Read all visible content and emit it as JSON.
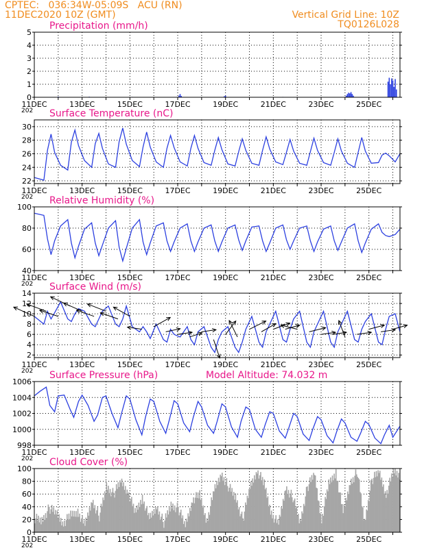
{
  "header": {
    "line1": "CPTEC:   036:34W-05:09S   ACU (RN)",
    "line2": "11DEC2020 10Z (GMT)",
    "right1": "Vertical Grid Line: 10Z",
    "right2": "TQ0126L028"
  },
  "colors": {
    "header": "#f08c1e",
    "title": "#e8178a",
    "line": "#2b3fe0",
    "cloud": "#a6a6a6",
    "arrow": "#000000"
  },
  "x_ticks": [
    "11DEC",
    "13DEC",
    "15DEC",
    "17DEC",
    "19DEC",
    "21DEC",
    "23DEC",
    "25DEC"
  ],
  "year_fragment": "202",
  "chart_data": [
    {
      "id": "precip",
      "type": "bar",
      "title": "Precipitation (mm/h)",
      "ylim": [
        0,
        5
      ],
      "yticks": [
        0,
        1,
        2,
        3,
        4,
        5
      ],
      "x_range_days": [
        11,
        26.3
      ],
      "bars": [
        {
          "x": 12.0,
          "y": 0.05
        },
        {
          "x": 13.3,
          "y": 0.04
        },
        {
          "x": 15.1,
          "y": 0.03
        },
        {
          "x": 17.05,
          "y": 0.12
        },
        {
          "x": 17.1,
          "y": 0.25
        },
        {
          "x": 17.15,
          "y": 0.1
        },
        {
          "x": 18.95,
          "y": 0.08
        },
        {
          "x": 19.0,
          "y": 0.12
        },
        {
          "x": 21.4,
          "y": 0.03
        },
        {
          "x": 24.05,
          "y": 0.12
        },
        {
          "x": 24.1,
          "y": 0.25
        },
        {
          "x": 24.15,
          "y": 0.35
        },
        {
          "x": 24.2,
          "y": 0.3
        },
        {
          "x": 24.25,
          "y": 0.4
        },
        {
          "x": 24.3,
          "y": 0.25
        },
        {
          "x": 24.35,
          "y": 0.12
        },
        {
          "x": 25.8,
          "y": 1.2
        },
        {
          "x": 25.85,
          "y": 1.5
        },
        {
          "x": 25.9,
          "y": 1.0
        },
        {
          "x": 25.95,
          "y": 1.45
        },
        {
          "x": 26.0,
          "y": 1.3
        },
        {
          "x": 26.05,
          "y": 0.8
        },
        {
          "x": 26.1,
          "y": 1.4
        },
        {
          "x": 26.15,
          "y": 0.6
        }
      ]
    },
    {
      "id": "temp",
      "type": "line",
      "title": "Surface Temperature (nC)",
      "ylim": [
        21.6,
        31
      ],
      "yticks": [
        22,
        24,
        26,
        28,
        30
      ],
      "x_range_days": [
        11,
        26.3
      ],
      "x": [
        11.0,
        11.4,
        11.55,
        11.7,
        11.85,
        12.1,
        12.4,
        12.55,
        12.7,
        12.85,
        13.1,
        13.4,
        13.55,
        13.7,
        13.85,
        14.1,
        14.4,
        14.55,
        14.7,
        14.85,
        15.1,
        15.4,
        15.55,
        15.7,
        15.85,
        16.1,
        16.4,
        16.55,
        16.7,
        16.85,
        17.1,
        17.4,
        17.55,
        17.7,
        17.85,
        18.1,
        18.4,
        18.55,
        18.7,
        18.85,
        19.1,
        19.4,
        19.55,
        19.7,
        19.85,
        20.1,
        20.4,
        20.55,
        20.7,
        20.85,
        21.1,
        21.4,
        21.55,
        21.7,
        21.85,
        22.1,
        22.4,
        22.55,
        22.7,
        22.85,
        23.1,
        23.4,
        23.55,
        23.7,
        23.85,
        24.1,
        24.4,
        24.55,
        24.7,
        24.85,
        25.1,
        25.4,
        25.55,
        25.7,
        25.85,
        26.1,
        26.3
      ],
      "values": [
        22.5,
        22.1,
        26.5,
        28.9,
        26.2,
        24.3,
        23.6,
        27.7,
        29.5,
        27.2,
        25.0,
        24.0,
        27.5,
        29.0,
        26.8,
        24.5,
        24.0,
        27.8,
        29.8,
        27.4,
        25.0,
        24.1,
        27.0,
        29.2,
        27.0,
        24.8,
        24.0,
        26.8,
        28.7,
        26.9,
        24.8,
        24.2,
        26.8,
        28.7,
        26.8,
        24.7,
        24.3,
        26.5,
        28.4,
        26.6,
        24.5,
        24.2,
        26.3,
        28.2,
        26.5,
        24.6,
        24.3,
        26.5,
        28.5,
        26.7,
        24.8,
        24.4,
        26.2,
        28.1,
        26.4,
        24.6,
        24.3,
        26.3,
        28.3,
        26.5,
        24.7,
        24.3,
        26.2,
        28.2,
        26.4,
        24.6,
        24.0,
        26.2,
        28.4,
        26.4,
        24.6,
        24.7,
        25.8,
        26.1,
        25.7,
        24.8,
        26.0
      ]
    },
    {
      "id": "rh",
      "type": "line",
      "title": "Relative Humidity (%)",
      "ylim": [
        40,
        100
      ],
      "yticks": [
        40,
        60,
        80,
        100
      ],
      "x_range_days": [
        11,
        26.3
      ],
      "x": [
        11.0,
        11.4,
        11.55,
        11.7,
        11.85,
        12.1,
        12.4,
        12.55,
        12.7,
        12.85,
        13.1,
        13.4,
        13.55,
        13.7,
        13.85,
        14.1,
        14.4,
        14.55,
        14.7,
        14.85,
        15.1,
        15.4,
        15.55,
        15.7,
        15.85,
        16.1,
        16.4,
        16.55,
        16.7,
        16.85,
        17.1,
        17.4,
        17.55,
        17.7,
        17.85,
        18.1,
        18.4,
        18.55,
        18.7,
        18.85,
        19.1,
        19.4,
        19.55,
        19.7,
        19.85,
        20.1,
        20.4,
        20.55,
        20.7,
        20.85,
        21.1,
        21.4,
        21.55,
        21.7,
        21.85,
        22.1,
        22.4,
        22.55,
        22.7,
        22.85,
        23.1,
        23.4,
        23.55,
        23.7,
        23.85,
        24.1,
        24.4,
        24.55,
        24.7,
        24.85,
        25.1,
        25.4,
        25.55,
        25.7,
        25.85,
        26.1,
        26.3
      ],
      "values": [
        94,
        92,
        70,
        55,
        68,
        82,
        88,
        66,
        52,
        63,
        79,
        85,
        66,
        54,
        64,
        80,
        87,
        62,
        49,
        61,
        80,
        88,
        67,
        55,
        66,
        82,
        85,
        68,
        58,
        67,
        80,
        84,
        68,
        58,
        67,
        80,
        83,
        68,
        58,
        67,
        80,
        83,
        69,
        59,
        68,
        81,
        82,
        68,
        58,
        66,
        80,
        83,
        69,
        60,
        68,
        80,
        82,
        68,
        58,
        67,
        79,
        82,
        68,
        59,
        67,
        80,
        84,
        68,
        57,
        66,
        79,
        84,
        76,
        73,
        72,
        74,
        79
      ]
    },
    {
      "id": "wind",
      "type": "line",
      "title": "Surface Wind (m/s)",
      "ylim": [
        1.5,
        14
      ],
      "yticks": [
        2,
        4,
        6,
        8,
        10,
        12,
        14
      ],
      "x_range_days": [
        11,
        26.3
      ],
      "x": [
        11.0,
        11.4,
        11.55,
        11.7,
        11.85,
        12.1,
        12.4,
        12.55,
        12.7,
        12.85,
        13.1,
        13.4,
        13.55,
        13.7,
        13.85,
        14.1,
        14.4,
        14.55,
        14.7,
        14.85,
        15.1,
        15.4,
        15.55,
        15.7,
        15.85,
        16.1,
        16.4,
        16.55,
        16.7,
        16.85,
        17.1,
        17.4,
        17.55,
        17.7,
        17.85,
        18.1,
        18.4,
        18.55,
        18.7,
        18.85,
        19.1,
        19.4,
        19.55,
        19.7,
        19.85,
        20.1,
        20.4,
        20.55,
        20.7,
        20.85,
        21.1,
        21.4,
        21.55,
        21.7,
        21.85,
        22.1,
        22.4,
        22.55,
        22.7,
        22.85,
        23.1,
        23.4,
        23.55,
        23.7,
        23.85,
        24.1,
        24.4,
        24.55,
        24.7,
        24.85,
        25.1,
        25.4,
        25.55,
        25.7,
        25.85,
        26.1,
        26.3
      ],
      "values": [
        9.5,
        8.0,
        10.5,
        9.0,
        10.2,
        12.3,
        9.0,
        8.5,
        10.0,
        11.0,
        10.5,
        8.0,
        7.5,
        9.0,
        10.5,
        11.5,
        8.0,
        7.5,
        9.0,
        11.5,
        7.5,
        6.5,
        7.5,
        6.5,
        5.2,
        8.0,
        5.0,
        4.5,
        7.0,
        6.0,
        5.5,
        7.5,
        5.0,
        4.0,
        6.5,
        7.5,
        3.5,
        2.5,
        5.0,
        6.5,
        7.5,
        3.5,
        2.5,
        4.5,
        7.0,
        9.5,
        4.5,
        3.5,
        6.5,
        8.0,
        10.5,
        5.0,
        4.5,
        7.0,
        9.0,
        10.5,
        4.5,
        3.5,
        6.5,
        8.0,
        10.5,
        4.5,
        3.5,
        6.5,
        8.0,
        10.5,
        5.0,
        4.5,
        7.0,
        8.5,
        10.0,
        4.5,
        4.0,
        7.0,
        9.5,
        10.0,
        6.5
      ],
      "vectors": [
        {
          "x": 11.0,
          "u": -1.0,
          "v": 0.45,
          "speed": 9.5
        },
        {
          "x": 11.5,
          "u": -0.95,
          "v": 0.35,
          "speed": 10.5
        },
        {
          "x": 12.0,
          "u": -0.9,
          "v": 0.3,
          "speed": 9.5
        },
        {
          "x": 12.5,
          "u": -0.95,
          "v": 0.45,
          "speed": 11.5
        },
        {
          "x": 13.0,
          "u": -0.9,
          "v": 0.4,
          "speed": 10.5
        },
        {
          "x": 13.5,
          "u": -0.85,
          "v": 0.3,
          "speed": 9.5
        },
        {
          "x": 14.0,
          "u": -0.9,
          "v": 0.35,
          "speed": 10.5
        },
        {
          "x": 14.5,
          "u": -0.85,
          "v": 0.3,
          "speed": 9.0
        },
        {
          "x": 15.0,
          "u": -0.8,
          "v": 0.45,
          "speed": 9.5
        },
        {
          "x": 15.5,
          "u": -0.7,
          "v": 0.1,
          "speed": 7.0
        },
        {
          "x": 16.0,
          "u": 0.8,
          "v": 0.45,
          "speed": 7.5
        },
        {
          "x": 16.5,
          "u": 0.7,
          "v": 0.15,
          "speed": 6.5
        },
        {
          "x": 17.0,
          "u": 0.7,
          "v": 0.1,
          "speed": 6.0
        },
        {
          "x": 17.5,
          "u": 0.6,
          "v": 0.2,
          "speed": 5.5
        },
        {
          "x": 18.0,
          "u": 0.7,
          "v": 0.1,
          "speed": 6.5
        },
        {
          "x": 18.5,
          "u": 0.3,
          "v": -0.9,
          "speed": 5.0
        },
        {
          "x": 19.0,
          "u": 0.5,
          "v": 0.65,
          "speed": 6.0
        },
        {
          "x": 19.5,
          "u": -0.4,
          "v": 0.8,
          "speed": 5.5
        },
        {
          "x": 20.0,
          "u": 0.8,
          "v": 0.4,
          "speed": 7.0
        },
        {
          "x": 20.5,
          "u": 0.7,
          "v": 0.4,
          "speed": 6.5
        },
        {
          "x": 21.0,
          "u": 0.8,
          "v": 0.3,
          "speed": 7.0
        },
        {
          "x": 21.5,
          "u": 0.7,
          "v": 0.2,
          "speed": 7.0
        },
        {
          "x": 22.0,
          "u": -0.8,
          "v": 0.2,
          "speed": 7.0
        },
        {
          "x": 22.5,
          "u": 0.8,
          "v": 0.2,
          "speed": 6.5
        },
        {
          "x": 23.0,
          "u": 0.7,
          "v": 0.1,
          "speed": 6.0
        },
        {
          "x": 23.5,
          "u": 0.65,
          "v": 0.1,
          "speed": 6.0
        },
        {
          "x": 24.0,
          "u": -0.3,
          "v": 0.8,
          "speed": 5.5
        },
        {
          "x": 24.5,
          "u": 0.7,
          "v": 0.1,
          "speed": 6.0
        },
        {
          "x": 25.0,
          "u": 0.75,
          "v": 0.2,
          "speed": 7.0
        },
        {
          "x": 25.5,
          "u": 0.7,
          "v": 0.1,
          "speed": 6.5
        },
        {
          "x": 26.0,
          "u": 0.7,
          "v": 0.2,
          "speed": 7.0
        }
      ]
    },
    {
      "id": "pres",
      "type": "line",
      "title": "Surface Pressure (hPa)",
      "annotation": "Model Altitude: 74.032 m",
      "ylim": [
        998,
        1006
      ],
      "yticks": [
        998,
        1000,
        1002,
        1004,
        1006
      ],
      "x_range_days": [
        11,
        26.3
      ],
      "x": [
        11.0,
        11.25,
        11.5,
        11.65,
        11.85,
        12.0,
        12.25,
        12.5,
        12.65,
        12.85,
        13.0,
        13.25,
        13.5,
        13.65,
        13.85,
        14.0,
        14.25,
        14.5,
        14.65,
        14.85,
        15.0,
        15.25,
        15.5,
        15.65,
        15.85,
        16.0,
        16.25,
        16.5,
        16.65,
        16.85,
        17.0,
        17.25,
        17.5,
        17.65,
        17.85,
        18.0,
        18.25,
        18.5,
        18.65,
        18.85,
        19.0,
        19.25,
        19.5,
        19.65,
        19.85,
        20.0,
        20.25,
        20.5,
        20.65,
        20.85,
        21.0,
        21.25,
        21.5,
        21.65,
        21.85,
        22.0,
        22.25,
        22.5,
        22.65,
        22.85,
        23.0,
        23.25,
        23.5,
        23.65,
        23.85,
        24.0,
        24.25,
        24.5,
        24.65,
        24.85,
        25.0,
        25.25,
        25.5,
        25.65,
        25.85,
        26.0,
        26.3
      ],
      "values": [
        1004.2,
        1004.8,
        1005.3,
        1003.0,
        1002.2,
        1004.2,
        1004.3,
        1002.5,
        1001.5,
        1003.5,
        1004.3,
        1003.0,
        1001.0,
        1001.8,
        1004.0,
        1004.2,
        1002.0,
        1000.2,
        1002.0,
        1004.2,
        1003.8,
        1001.2,
        999.3,
        1001.5,
        1003.8,
        1003.5,
        1001.0,
        999.5,
        1001.2,
        1003.6,
        1003.2,
        1000.8,
        999.7,
        1001.5,
        1003.5,
        1002.8,
        1000.5,
        999.5,
        1001.0,
        1003.2,
        1002.8,
        1000.3,
        999.0,
        1001.0,
        1002.8,
        1002.5,
        1000.0,
        999.0,
        1000.5,
        1002.2,
        1002.0,
        999.8,
        998.9,
        1000.2,
        1002.0,
        1001.6,
        999.4,
        998.6,
        1000.0,
        1001.6,
        1001.2,
        999.2,
        998.3,
        999.7,
        1001.3,
        1000.8,
        999.0,
        998.5,
        999.5,
        1001.0,
        1000.6,
        998.9,
        998.2,
        999.3,
        1000.5,
        999.0,
        1000.4
      ]
    },
    {
      "id": "cloud",
      "type": "area",
      "title": "Cloud Cover (%)",
      "ylim": [
        0,
        100
      ],
      "yticks": [
        0,
        20,
        40,
        60,
        80,
        100
      ],
      "x_range_days": [
        11,
        26.3
      ],
      "x": [
        11.0,
        11.3,
        11.6,
        11.9,
        12.2,
        12.5,
        12.8,
        13.1,
        13.4,
        13.7,
        14.0,
        14.3,
        14.6,
        14.9,
        15.2,
        15.5,
        15.8,
        16.1,
        16.4,
        16.7,
        17.0,
        17.3,
        17.6,
        17.9,
        18.2,
        18.5,
        18.8,
        19.1,
        19.4,
        19.7,
        20.0,
        20.3,
        20.6,
        20.9,
        21.2,
        21.5,
        21.8,
        22.1,
        22.4,
        22.7,
        23.0,
        23.3,
        23.6,
        23.9,
        24.2,
        24.5,
        24.8,
        25.1,
        25.4,
        25.7,
        26.0,
        26.3
      ],
      "values": [
        22,
        18,
        38,
        30,
        15,
        26,
        33,
        10,
        50,
        25,
        72,
        60,
        80,
        65,
        30,
        55,
        20,
        40,
        15,
        42,
        38,
        10,
        52,
        58,
        18,
        64,
        92,
        72,
        55,
        20,
        70,
        98,
        75,
        30,
        12,
        70,
        55,
        15,
        70,
        92,
        20,
        75,
        95,
        30,
        78,
        95,
        15,
        82,
        95,
        60,
        95,
        90
      ]
    }
  ]
}
